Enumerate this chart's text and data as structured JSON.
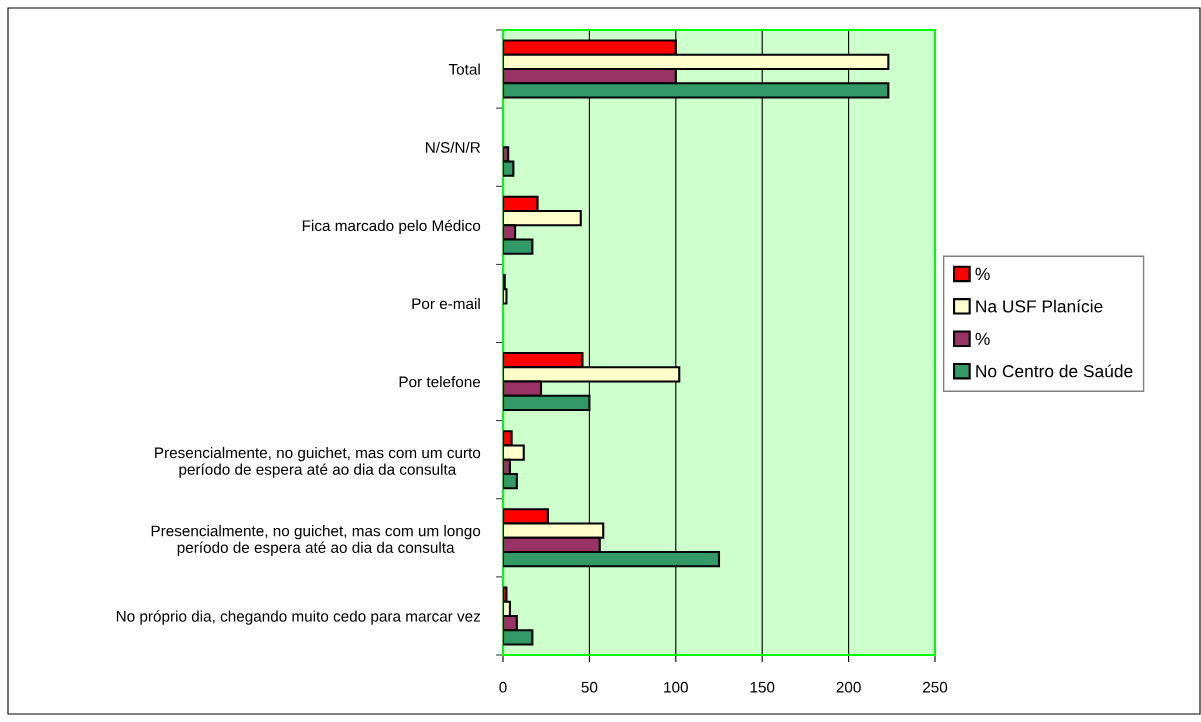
{
  "chart_data": {
    "type": "bar",
    "orientation": "horizontal",
    "categories": [
      "Total",
      "N/S/N/R",
      "Fica marcado pelo Médico",
      "Por e-mail",
      "Por telefone",
      "Presencialmente, no guichet, mas com um curto\nperíodo de espera até ao dia da consulta",
      "Presencialmente, no guichet, mas com um longo\nperíodo de espera até ao dia da consulta",
      "No próprio dia, chegando muito cedo para marcar vez"
    ],
    "series": [
      {
        "name": "%",
        "color": "#ff0000",
        "values": [
          100,
          0,
          20,
          1,
          46,
          5,
          26,
          2
        ]
      },
      {
        "name": "Na USF Planície",
        "color": "#ffffcc",
        "values": [
          223,
          0,
          45,
          2,
          102,
          12,
          58,
          4
        ]
      },
      {
        "name": "%",
        "color": "#993366",
        "values": [
          100,
          3,
          7,
          0,
          22,
          4,
          56,
          8
        ]
      },
      {
        "name": "No Centro de Saúde",
        "color": "#339966",
        "values": [
          223,
          6,
          17,
          0,
          50,
          8,
          125,
          17
        ]
      }
    ],
    "xlim": [
      0,
      250
    ],
    "xticks": [
      0,
      50,
      100,
      150,
      200,
      250
    ],
    "grid": "x",
    "legend": "right"
  }
}
